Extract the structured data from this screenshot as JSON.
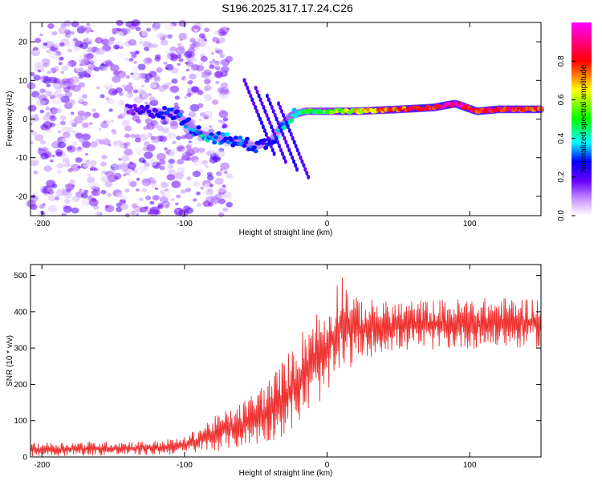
{
  "figure_title": "S196.2025.317.17.24.C26",
  "chart_data": [
    {
      "type": "heatmap",
      "title": "",
      "xlabel": "Height of straight line (km)",
      "ylabel": "Frequency (Hz)",
      "xlim": [
        -208,
        150
      ],
      "ylim": [
        -25,
        25
      ],
      "xticks": [
        -200,
        -100,
        0,
        100
      ],
      "yticks": [
        -20,
        -10,
        0,
        10,
        20
      ],
      "colorbar": {
        "label": "Normalized spectral amplitude",
        "range": [
          0.0,
          1.0
        ],
        "ticks": [
          0.0,
          0.2,
          0.4,
          0.6,
          0.8
        ],
        "colors": [
          "#ffffff",
          "#9933ff",
          "#0000ff",
          "#00ffff",
          "#00ff00",
          "#ffff00",
          "#ff0000",
          "#ff00ff"
        ]
      },
      "ridge": [
        {
          "x": -140,
          "y": 2,
          "amp": 0.3
        },
        {
          "x": -120,
          "y": 2,
          "amp": 0.35
        },
        {
          "x": -105,
          "y": 1,
          "amp": 0.4
        },
        {
          "x": -95,
          "y": -2,
          "amp": 0.45
        },
        {
          "x": -88,
          "y": -4,
          "amp": 0.5
        },
        {
          "x": -75,
          "y": -5,
          "amp": 0.45
        },
        {
          "x": -62,
          "y": -6,
          "amp": 0.45
        },
        {
          "x": -50,
          "y": -7,
          "amp": 0.4
        },
        {
          "x": -40,
          "y": -6,
          "amp": 0.4
        },
        {
          "x": -32,
          "y": -2,
          "amp": 0.5
        },
        {
          "x": -25,
          "y": 1,
          "amp": 0.55
        },
        {
          "x": -15,
          "y": 2,
          "amp": 0.6
        },
        {
          "x": 0,
          "y": 2,
          "amp": 0.65
        },
        {
          "x": 20,
          "y": 2,
          "amp": 0.75
        },
        {
          "x": 50,
          "y": 2.5,
          "amp": 0.85
        },
        {
          "x": 75,
          "y": 3,
          "amp": 0.9
        },
        {
          "x": 90,
          "y": 4,
          "amp": 0.95
        },
        {
          "x": 105,
          "y": 2,
          "amp": 0.9
        },
        {
          "x": 120,
          "y": 2.5,
          "amp": 0.9
        },
        {
          "x": 150,
          "y": 2.5,
          "amp": 0.85
        }
      ]
    },
    {
      "type": "line",
      "title": "",
      "xlabel": "Height of straight line (km)",
      "ylabel": "SNR (10 * v/v)",
      "xlim": [
        -208,
        150
      ],
      "ylim": [
        0,
        530
      ],
      "xticks": [
        -200,
        -100,
        0,
        100
      ],
      "yticks": [
        0,
        100,
        200,
        300,
        400,
        500
      ],
      "series": [
        {
          "name": "SNR",
          "color": "#ee3333",
          "envelope": [
            {
              "x": -208,
              "low": 2,
              "high": 40
            },
            {
              "x": -120,
              "low": 5,
              "high": 45
            },
            {
              "x": -100,
              "low": 8,
              "high": 55
            },
            {
              "x": -80,
              "low": 15,
              "high": 110
            },
            {
              "x": -60,
              "low": 25,
              "high": 150
            },
            {
              "x": -40,
              "low": 40,
              "high": 220
            },
            {
              "x": -25,
              "low": 70,
              "high": 300
            },
            {
              "x": -10,
              "low": 130,
              "high": 400
            },
            {
              "x": 0,
              "low": 170,
              "high": 410
            },
            {
              "x": 10,
              "low": 220,
              "high": 520
            },
            {
              "x": 20,
              "low": 260,
              "high": 440
            },
            {
              "x": 40,
              "low": 290,
              "high": 430
            },
            {
              "x": 80,
              "low": 295,
              "high": 435
            },
            {
              "x": 120,
              "low": 300,
              "high": 440
            },
            {
              "x": 150,
              "low": 300,
              "high": 440
            }
          ]
        }
      ]
    }
  ]
}
